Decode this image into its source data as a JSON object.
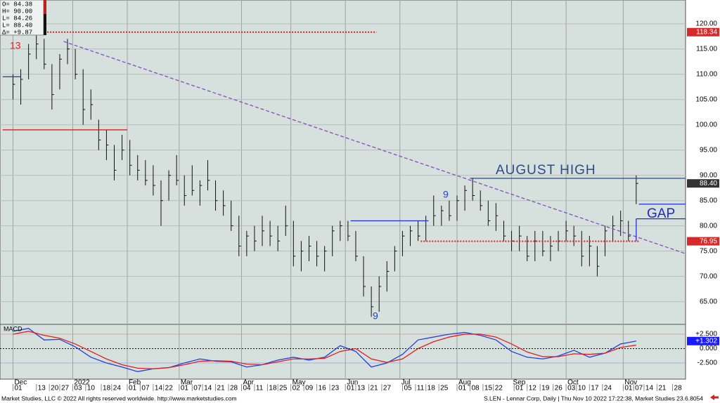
{
  "chart_data": [
    {
      "type": "ohlc",
      "info": [
        "O=  84.38",
        "H=  90.00",
        "L=  84.26",
        "L=  88.40",
        "Δ=  +9.87"
      ],
      "xlim": [
        -5,
        259
      ],
      "ylim": [
        60.5,
        124.7
      ],
      "yticks": [
        {
          "value": 65,
          "label": "65.00"
        },
        {
          "value": 70,
          "label": "70.00"
        },
        {
          "value": 75,
          "label": "75.00"
        },
        {
          "value": 80,
          "label": "80.00"
        },
        {
          "value": 85,
          "label": "85.00"
        },
        {
          "value": 90,
          "label": "90.00"
        },
        {
          "value": 95,
          "label": "95.00"
        },
        {
          "value": 100,
          "label": "100.00"
        },
        {
          "value": 105,
          "label": "105.00"
        },
        {
          "value": 110,
          "label": "110.00"
        },
        {
          "value": 115,
          "label": "115.00"
        },
        {
          "value": 120,
          "label": "120.00"
        }
      ],
      "month_ticks": [
        {
          "value": 0,
          "label": "Dec"
        },
        {
          "value": 23,
          "label": "2022"
        },
        {
          "value": 44,
          "label": "Feb"
        },
        {
          "value": 64,
          "label": "Mar"
        },
        {
          "value": 88,
          "label": "Apr"
        },
        {
          "value": 107,
          "label": "May"
        },
        {
          "value": 128,
          "label": "Jun"
        },
        {
          "value": 149,
          "label": "Jul"
        },
        {
          "value": 171,
          "label": "Aug"
        },
        {
          "value": 192,
          "label": "Sep"
        },
        {
          "value": 213,
          "label": "Oct"
        },
        {
          "value": 235,
          "label": "Nov"
        }
      ],
      "xticks": [
        {
          "value": 0,
          "label": "01"
        },
        {
          "value": 9,
          "label": "13"
        },
        {
          "value": 14,
          "label": "20"
        },
        {
          "value": 18,
          "label": "27"
        },
        {
          "value": 23,
          "label": "03"
        },
        {
          "value": 28,
          "label": "10"
        },
        {
          "value": 34,
          "label": "18"
        },
        {
          "value": 38,
          "label": "24"
        },
        {
          "value": 44,
          "label": "01"
        },
        {
          "value": 49,
          "label": "07"
        },
        {
          "value": 54,
          "label": "14"
        },
        {
          "value": 58,
          "label": "22"
        },
        {
          "value": 64,
          "label": "01"
        },
        {
          "value": 69,
          "label": "07"
        },
        {
          "value": 73,
          "label": "14"
        },
        {
          "value": 78,
          "label": "21"
        },
        {
          "value": 83,
          "label": "28"
        },
        {
          "value": 88,
          "label": "04"
        },
        {
          "value": 93,
          "label": "11"
        },
        {
          "value": 98,
          "label": "18"
        },
        {
          "value": 102,
          "label": "25"
        },
        {
          "value": 107,
          "label": "02"
        },
        {
          "value": 112,
          "label": "09"
        },
        {
          "value": 117,
          "label": "16"
        },
        {
          "value": 122,
          "label": "23"
        },
        {
          "value": 128,
          "label": "01"
        },
        {
          "value": 132,
          "label": "13"
        },
        {
          "value": 137,
          "label": "21"
        },
        {
          "value": 142,
          "label": "27"
        },
        {
          "value": 150,
          "label": "05"
        },
        {
          "value": 155,
          "label": "11"
        },
        {
          "value": 159,
          "label": "18"
        },
        {
          "value": 164,
          "label": "25"
        },
        {
          "value": 171,
          "label": "01"
        },
        {
          "value": 176,
          "label": "08"
        },
        {
          "value": 181,
          "label": "15"
        },
        {
          "value": 185,
          "label": "22"
        },
        {
          "value": 193,
          "label": "01"
        },
        {
          "value": 198,
          "label": "12"
        },
        {
          "value": 203,
          "label": "19"
        },
        {
          "value": 208,
          "label": "26"
        },
        {
          "value": 213,
          "label": "03"
        },
        {
          "value": 217,
          "label": "10"
        },
        {
          "value": 222,
          "label": "17"
        },
        {
          "value": 227,
          "label": "24"
        },
        {
          "value": 235,
          "label": "01"
        },
        {
          "value": 239,
          "label": "07"
        },
        {
          "value": 243,
          "label": "14"
        },
        {
          "value": 248,
          "label": "21"
        },
        {
          "value": 254,
          "label": "28"
        }
      ],
      "grid": true,
      "color": "#111111",
      "x": [
        0,
        3,
        6,
        9,
        12,
        15,
        18,
        21,
        24,
        27,
        30,
        33,
        36,
        39,
        42,
        45,
        48,
        51,
        54,
        57,
        60,
        63,
        66,
        69,
        72,
        75,
        78,
        81,
        84,
        87,
        90,
        93,
        96,
        99,
        102,
        105,
        108,
        111,
        114,
        117,
        120,
        123,
        126,
        129,
        132,
        135,
        138,
        141,
        144,
        147,
        150,
        153,
        156,
        159,
        162,
        165,
        168,
        171,
        174,
        177,
        180,
        183,
        186,
        189,
        192,
        195,
        198,
        201,
        204,
        207,
        210,
        213,
        216,
        219,
        222,
        225,
        228,
        231,
        234,
        237,
        240
      ],
      "high": [
        110,
        111,
        116,
        118,
        117,
        112,
        114,
        117,
        115,
        111,
        107,
        101,
        99,
        96,
        98,
        97,
        94,
        93,
        92,
        89,
        91,
        94,
        90,
        92,
        89,
        93,
        89,
        87,
        85,
        82,
        79,
        80,
        82,
        81,
        80,
        84,
        81,
        77,
        78,
        77,
        76,
        80,
        81,
        81,
        79,
        74,
        68,
        70,
        73,
        76,
        79,
        80,
        81,
        82,
        86,
        84,
        85,
        86,
        88,
        89.5,
        87,
        85,
        84.5,
        81,
        79,
        80,
        78,
        79,
        79,
        78,
        79,
        81,
        80,
        79,
        78,
        76,
        80,
        82,
        83,
        81,
        90
      ],
      "low": [
        105,
        104,
        109,
        113,
        111,
        103,
        107,
        112,
        109,
        100,
        101,
        95,
        93,
        89,
        93,
        90,
        89,
        88,
        86,
        80,
        85,
        88,
        84,
        86,
        84,
        87,
        83,
        82,
        79,
        74,
        74,
        75,
        76,
        76,
        75,
        78,
        72,
        71,
        73,
        72,
        71,
        74,
        77,
        77,
        73,
        66,
        62,
        63,
        67,
        71,
        74,
        76,
        77,
        77,
        80,
        80,
        81,
        81,
        83,
        85,
        83,
        80,
        79,
        77,
        75,
        75,
        73,
        73,
        74,
        73,
        75,
        77,
        76,
        72,
        72,
        70,
        74,
        77,
        78,
        77,
        84.3
      ],
      "close": [
        108,
        109,
        114,
        116,
        112,
        106,
        113,
        115,
        110,
        103,
        104,
        97,
        96,
        91,
        95,
        92,
        91,
        89,
        88,
        85,
        90,
        89,
        86,
        87,
        88,
        89,
        85,
        84,
        80,
        76,
        78,
        77,
        79,
        78,
        77,
        80,
        74,
        75,
        76,
        74,
        75,
        79,
        80,
        78,
        74,
        68,
        64,
        68,
        71,
        75,
        78,
        79,
        78,
        81,
        82,
        83,
        82,
        85,
        87,
        86,
        84,
        81,
        82,
        78,
        77,
        78,
        74,
        77,
        75,
        76,
        77,
        79,
        78,
        74,
        76,
        72,
        79,
        80,
        81,
        78,
        88.4
      ],
      "levels": [
        {
          "x": [
            11,
            140
          ],
          "y": [
            118.34,
            118.34
          ],
          "color": "#e02020",
          "style": "dotted"
        },
        {
          "x": [
            -4,
            44
          ],
          "y": [
            99,
            99
          ],
          "color": "#d42020",
          "style": "solid"
        },
        {
          "x": [
            -4,
            3
          ],
          "y": [
            109.5,
            109.5
          ],
          "color": "#2030d0",
          "style": "solid"
        },
        {
          "x": [
            130,
            160
          ],
          "y": [
            81,
            81
          ],
          "color": "#2030d0",
          "style": "solid"
        },
        {
          "x": [
            157,
            241
          ],
          "y": [
            76.95,
            76.95
          ],
          "color": "#e02020",
          "style": "dotted"
        },
        {
          "x": [
            176,
            259
          ],
          "y": [
            89.4,
            89.4
          ],
          "color": "#2a4a8a",
          "style": "solid"
        },
        {
          "x": [
            19.5,
            259
          ],
          "y": [
            116.5,
            74.5
          ],
          "color": "#8a4ac0",
          "style": "dashed"
        },
        {
          "x": [
            241,
            259
          ],
          "y": [
            84.3,
            84.3
          ],
          "color": "#2030d0",
          "style": "solid"
        },
        {
          "x": [
            240,
            259
          ],
          "y": [
            81.4,
            81.4
          ],
          "color": "#2030d0",
          "style": "solid"
        },
        {
          "x": [
            240,
            240
          ],
          "y": [
            81.4,
            77
          ],
          "color": "#2030d0",
          "style": "solid"
        }
      ],
      "markers": [
        {
          "value": 118.34,
          "label": "118.34",
          "color": "#d42a2a"
        },
        {
          "value": 88.4,
          "label": "88.40",
          "color": "#333333"
        },
        {
          "value": 76.95,
          "label": "76.95",
          "color": "#d42a2a"
        }
      ],
      "annotations": [
        "AUGUST HIGH",
        "GAP"
      ],
      "count_labels": [
        "13",
        "9",
        "9"
      ]
    },
    {
      "type": "line",
      "title": "MACD",
      "xlim": [
        -5,
        259
      ],
      "ylim": [
        -5.3,
        4.2
      ],
      "yticks": [
        {
          "value": 2.5,
          "label": "+2.500"
        },
        {
          "value": 0,
          "label": "0.000"
        },
        {
          "value": -2.5,
          "label": "-2.500"
        }
      ],
      "x": [
        0,
        6,
        12,
        18,
        24,
        30,
        36,
        42,
        48,
        54,
        60,
        66,
        72,
        78,
        84,
        90,
        96,
        102,
        108,
        114,
        120,
        126,
        132,
        138,
        144,
        150,
        156,
        162,
        168,
        174,
        180,
        186,
        192,
        198,
        204,
        210,
        216,
        222,
        228,
        234,
        240
      ],
      "series": [
        {
          "color": "#2040e0",
          "values": [
            3.0,
            3.5,
            1.5,
            1.6,
            0.3,
            -1.5,
            -2.5,
            -3.2,
            -4.0,
            -3.5,
            -3.3,
            -2.5,
            -1.8,
            -2.2,
            -2.3,
            -3.2,
            -2.8,
            -2.0,
            -1.5,
            -2.0,
            -1.5,
            0.5,
            -0.5,
            -3.2,
            -2.5,
            -1.0,
            1.5,
            2.0,
            2.5,
            2.8,
            2.3,
            1.5,
            -0.5,
            -1.5,
            -1.8,
            -1.3,
            -0.3,
            -1.5,
            -0.8,
            0.8,
            1.302
          ]
        },
        {
          "color": "#e02020",
          "values": [
            2.5,
            3.0,
            2.3,
            1.8,
            0.8,
            -0.5,
            -1.8,
            -2.8,
            -3.4,
            -3.5,
            -3.3,
            -2.8,
            -2.2,
            -2.1,
            -2.2,
            -2.7,
            -2.8,
            -2.3,
            -1.8,
            -1.8,
            -1.7,
            -0.5,
            0.0,
            -1.8,
            -2.4,
            -1.8,
            0.0,
            1.2,
            2.0,
            2.5,
            2.5,
            2.0,
            0.8,
            -0.6,
            -1.4,
            -1.4,
            -0.9,
            -1.0,
            -0.8,
            0.2,
            0.6
          ]
        }
      ],
      "markers": [
        {
          "value": 1.302,
          "label": "+1.302",
          "color": "#1a1aff"
        }
      ]
    }
  ],
  "footer": {
    "left": "Market Studies, LLC © 2022 All rights reserved worldwide. http://www.marketstudies.com",
    "right": "S.LEN - Lennar Corp, Daily | Thu Nov 10 2022 17:22:38, Market Studies 23.6.8054"
  }
}
